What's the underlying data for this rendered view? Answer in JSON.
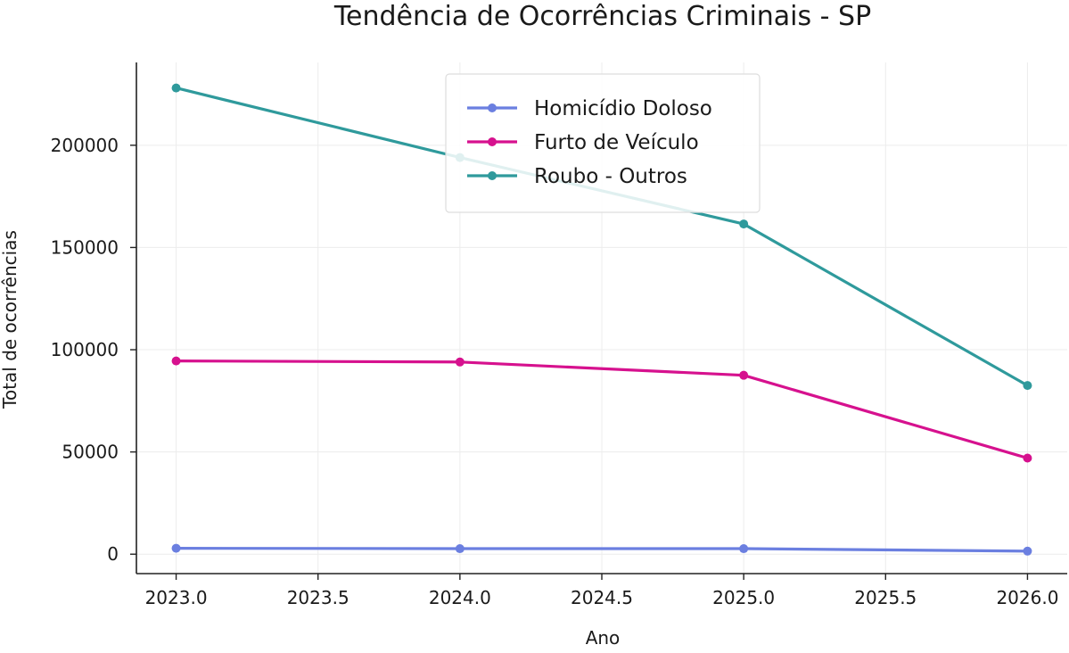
{
  "chart_data": {
    "type": "line",
    "title": "Tendência de Ocorrências Criminais - SP",
    "xlabel": "Ano",
    "ylabel": "Total de ocorrências",
    "xlim": [
      2022.86,
      2026.14
    ],
    "ylim": [
      -9500,
      240500
    ],
    "x_ticks": [
      2023.0,
      2023.5,
      2024.0,
      2024.5,
      2025.0,
      2025.5,
      2026.0
    ],
    "x_tick_labels": [
      "2023.0",
      "2023.5",
      "2024.0",
      "2024.5",
      "2025.0",
      "2025.5",
      "2026.0"
    ],
    "y_ticks": [
      0,
      50000,
      100000,
      150000,
      200000
    ],
    "y_tick_labels": [
      "0",
      "50000",
      "100000",
      "150000",
      "200000"
    ],
    "grid": true,
    "legend_position": "top-center",
    "x": [
      2023,
      2024,
      2025,
      2026
    ],
    "series": [
      {
        "name": "Homicídio Doloso",
        "color": "#6b7fe0",
        "values": [
          2900,
          2700,
          2700,
          1500
        ]
      },
      {
        "name": "Furto de Veículo",
        "color": "#d6118e",
        "values": [
          94500,
          94000,
          87500,
          47000
        ]
      },
      {
        "name": "Roubo - Outros",
        "color": "#2f9a9c",
        "values": [
          228000,
          194000,
          161500,
          82500
        ]
      }
    ]
  }
}
